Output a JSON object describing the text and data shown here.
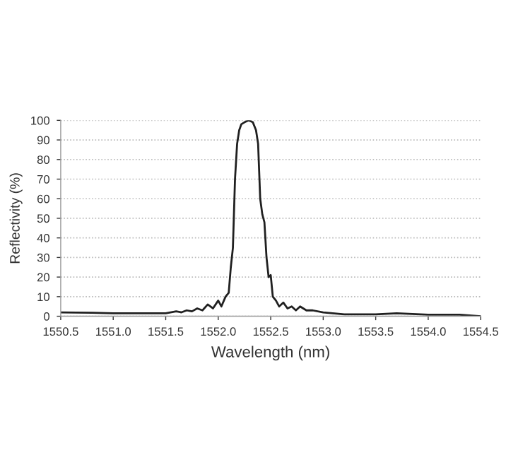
{
  "chart_data": {
    "type": "line",
    "xlabel": "Wavelength (nm)",
    "ylabel": "Reflectivity (%)",
    "x": [
      1550.5,
      1550.8,
      1551.0,
      1551.3,
      1551.5,
      1551.6,
      1551.65,
      1551.7,
      1551.75,
      1551.8,
      1551.85,
      1551.9,
      1551.95,
      1552.0,
      1552.03,
      1552.07,
      1552.1,
      1552.12,
      1552.14,
      1552.16,
      1552.18,
      1552.2,
      1552.22,
      1552.25,
      1552.29,
      1552.33,
      1552.36,
      1552.38,
      1552.4,
      1552.42,
      1552.44,
      1552.46,
      1552.48,
      1552.5,
      1552.52,
      1552.55,
      1552.58,
      1552.62,
      1552.66,
      1552.7,
      1552.74,
      1552.78,
      1552.84,
      1552.9,
      1553.0,
      1553.2,
      1553.5,
      1553.7,
      1554.0,
      1554.3,
      1554.5
    ],
    "series": [
      {
        "color": "#202020",
        "values": [
          2,
          1.8,
          1.5,
          1.5,
          1.5,
          2.5,
          2,
          3,
          2.5,
          4,
          3,
          6,
          4,
          8,
          5,
          10,
          12,
          25,
          35,
          70,
          88,
          95,
          98,
          99,
          100,
          99,
          95,
          88,
          60,
          52,
          48,
          30,
          20,
          21,
          10,
          8,
          5,
          7,
          4,
          5,
          3,
          5,
          3,
          3,
          2,
          1,
          1,
          1.5,
          0.8,
          0.8,
          0
        ]
      }
    ],
    "xlim": [
      1550.5,
      1554.5
    ],
    "ylim": [
      0,
      100
    ],
    "xticks": [
      1550.5,
      {
        "value": 1551,
        "label": "1551.0"
      },
      1551.5,
      {
        "value": 1552,
        "label": "1552.0"
      },
      1552.5,
      {
        "value": 1553,
        "label": "1553.0"
      },
      1553.5,
      {
        "value": 1554,
        "label": "1554.0"
      },
      1554.5
    ],
    "yticks": [
      0,
      10,
      20,
      30,
      40,
      50,
      60,
      70,
      80,
      90,
      100
    ],
    "grid": "y",
    "marker": "none",
    "line_style": "solid"
  }
}
